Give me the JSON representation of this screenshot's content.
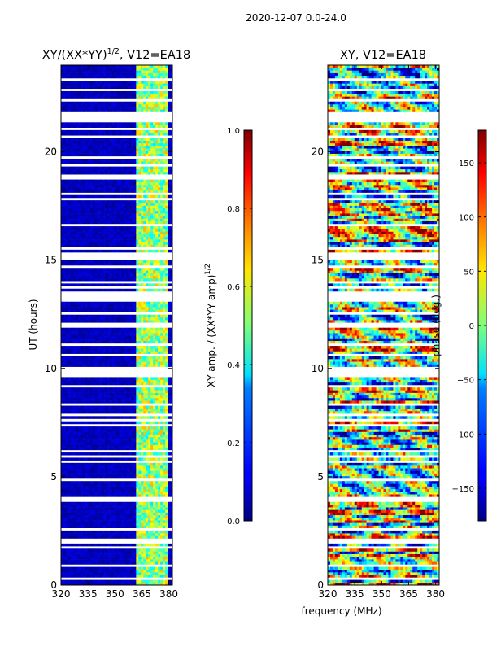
{
  "suptitle": "2020-12-07 0.0-24.0",
  "colors": {
    "bad": "#ffffff",
    "frame": "#000000"
  },
  "chart_data": [
    {
      "type": "heatmap",
      "id": "amp",
      "title_main": "XY/(XX*YY)",
      "title_sup": "1/2",
      "title_rest": ", V12=EA18",
      "xlabel": "",
      "ylabel": "UT (hours)",
      "xlim": [
        320,
        382
      ],
      "ylim": [
        0,
        24
      ],
      "xticks": [
        320,
        335,
        350,
        365,
        380
      ],
      "yticks": [
        0,
        5,
        10,
        15,
        20
      ],
      "colorbar": {
        "label_main": "XY amp. / (XX*YY amp)",
        "label_sup": "1/2",
        "range": [
          0.0,
          1.0
        ],
        "ticks": [
          "0.0",
          "0.2",
          "0.4",
          "0.6",
          "0.8",
          "1.0"
        ],
        "colormap": "jet"
      }
    },
    {
      "type": "heatmap",
      "id": "phase",
      "title_main": "XY, V12=EA18",
      "xlabel": "frequency (MHz)",
      "ylabel": "",
      "xlim": [
        320,
        382
      ],
      "ylim": [
        0,
        24
      ],
      "xticks": [
        320,
        335,
        350,
        365,
        380
      ],
      "yticks": [
        0,
        5,
        10,
        15,
        20
      ],
      "colorbar": {
        "label_main": "phase (deg.)",
        "range": [
          -180,
          180
        ],
        "ticks": [
          "-150",
          "-100",
          "-50",
          "0",
          "50",
          "100",
          "150"
        ],
        "colormap": "jet"
      }
    }
  ]
}
